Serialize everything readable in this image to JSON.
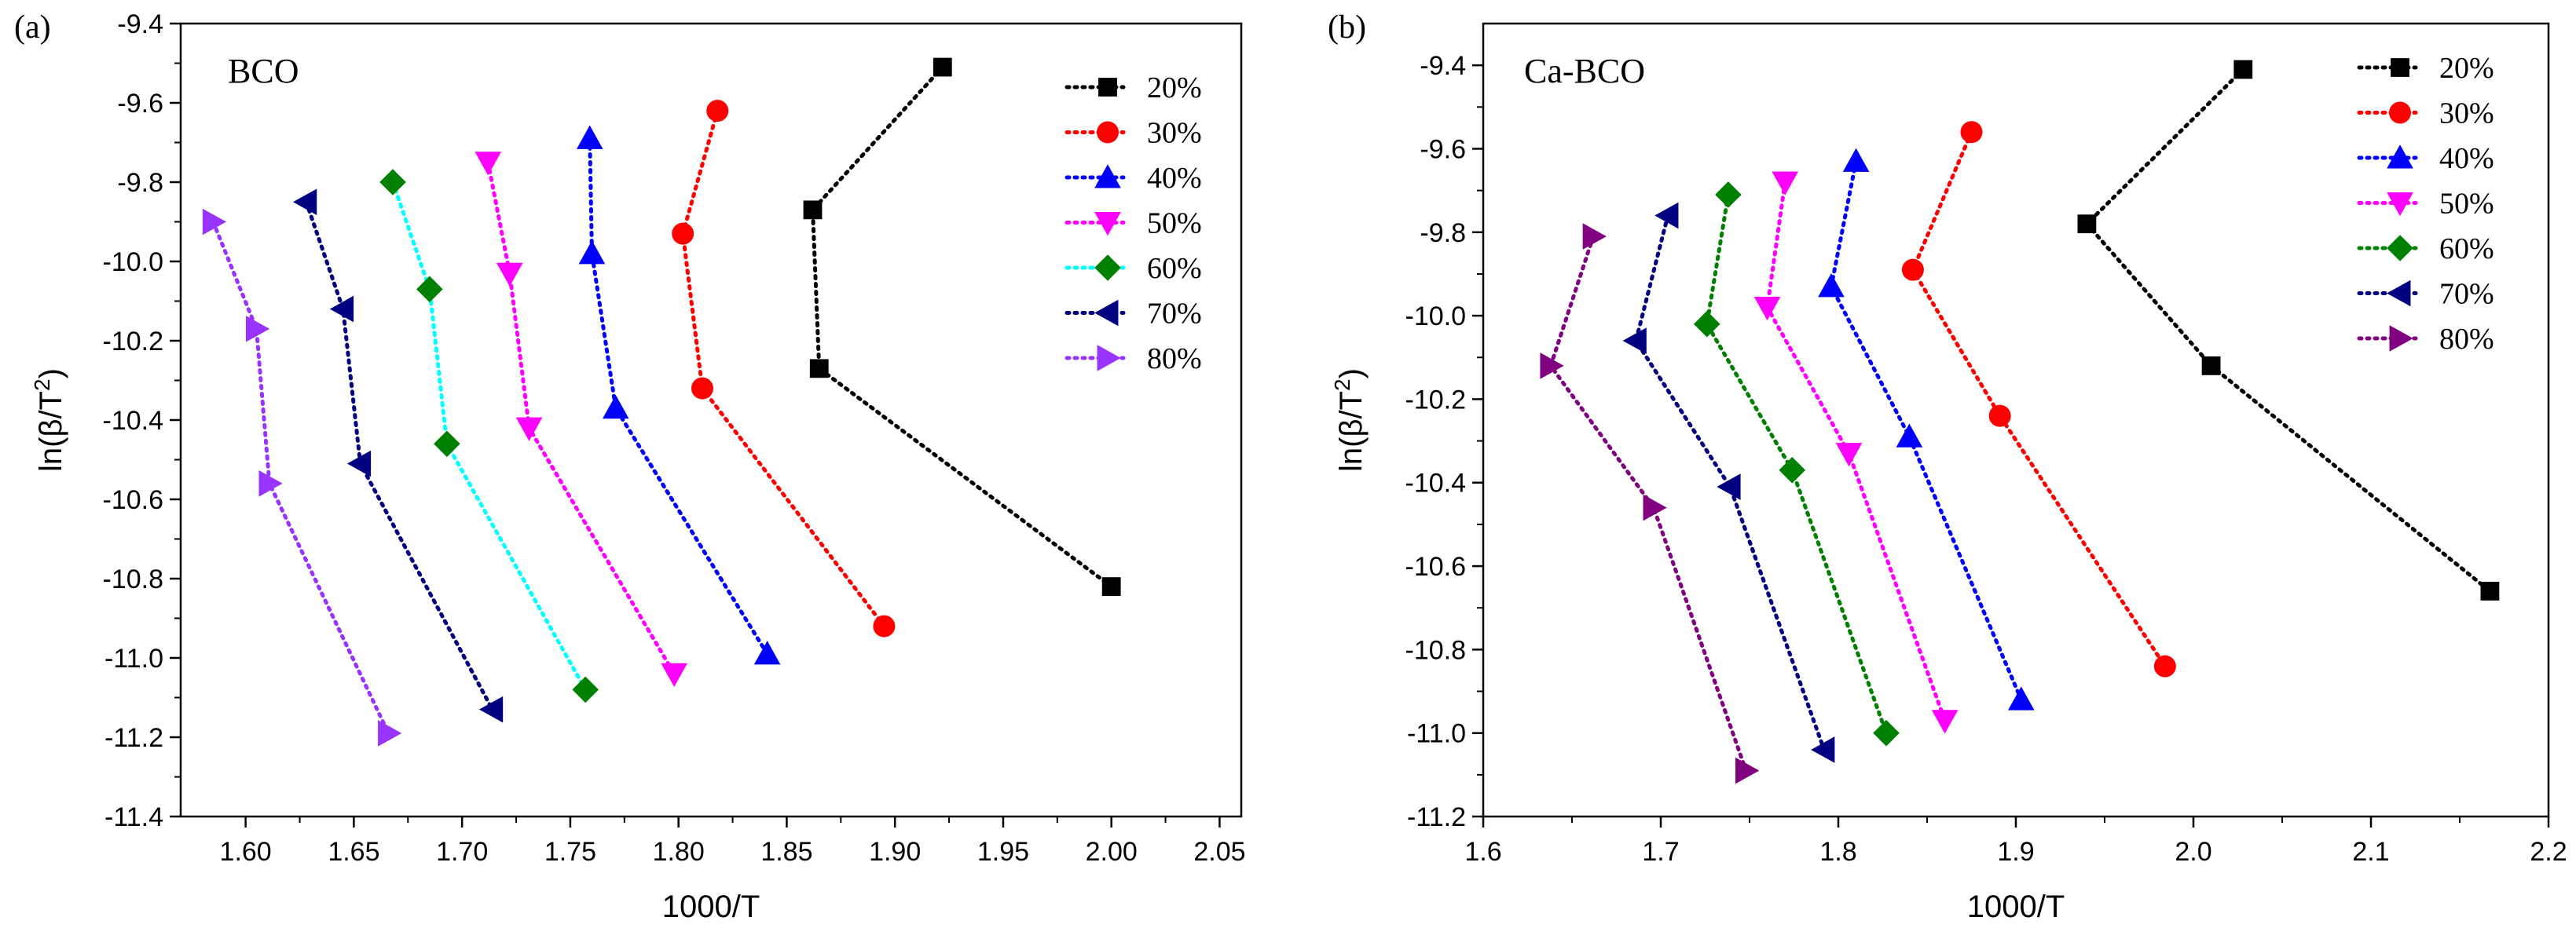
{
  "chart_data": [
    {
      "type": "scatter",
      "panel_label": "(a)",
      "title": "BCO",
      "xlabel": "1000/T",
      "ylabel": "ln(β/T²)",
      "ylabel_main": "ln(β/T",
      "ylabel_sup": "2",
      "ylabel_end": ")",
      "xlim": [
        1.57,
        2.06
      ],
      "ylim": [
        -11.4,
        -9.4
      ],
      "xticks": [
        1.6,
        1.65,
        1.7,
        1.75,
        1.8,
        1.85,
        1.9,
        1.95,
        2.0,
        2.05
      ],
      "xtick_labels": [
        "1.60",
        "1.65",
        "1.70",
        "1.75",
        "1.80",
        "1.85",
        "1.90",
        "1.95",
        "2.00",
        "2.05"
      ],
      "yticks": [
        -9.4,
        -9.6,
        -9.8,
        -10.0,
        -10.2,
        -10.4,
        -10.6,
        -10.8,
        -11.0,
        -11.2,
        -11.4
      ],
      "ytick_labels": [
        "-9.4",
        "-9.6",
        "-9.8",
        "-10.0",
        "-10.2",
        "-10.4",
        "-10.6",
        "-10.8",
        "-11.0",
        "-11.2",
        "-11.4"
      ],
      "legend_position": "top-right",
      "series": [
        {
          "name": "20%",
          "color": "#000000",
          "marker": "square",
          "x": [
            1.922,
            1.862,
            1.865,
            2.0
          ],
          "y": [
            -9.51,
            -9.87,
            -10.27,
            -10.82
          ]
        },
        {
          "name": "30%",
          "color": "#ff0000",
          "marker": "circle",
          "x": [
            1.818,
            1.802,
            1.811,
            1.895
          ],
          "y": [
            -9.62,
            -9.93,
            -10.32,
            -10.92
          ]
        },
        {
          "name": "40%",
          "color": "#0000ff",
          "marker": "triangle-up",
          "x": [
            1.759,
            1.76,
            1.771,
            1.841
          ],
          "y": [
            -9.69,
            -9.98,
            -10.37,
            -10.99
          ]
        },
        {
          "name": "50%",
          "color": "#ff00ff",
          "marker": "triangle-down",
          "x": [
            1.712,
            1.722,
            1.731,
            1.798
          ],
          "y": [
            -9.75,
            -10.03,
            -10.42,
            -11.04
          ]
        },
        {
          "name": "60%",
          "color": "#008000",
          "marker": "diamond",
          "line_color": "#00ffff",
          "x": [
            1.668,
            1.685,
            1.693,
            1.757
          ],
          "y": [
            -9.8,
            -10.07,
            -10.46,
            -11.08
          ]
        },
        {
          "name": "70%",
          "color": "#000080",
          "marker": "triangle-left",
          "x": [
            1.628,
            1.645,
            1.653,
            1.714
          ],
          "y": [
            -9.85,
            -10.12,
            -10.51,
            -11.13
          ]
        },
        {
          "name": "80%",
          "color": "#9933ff",
          "marker": "triangle-right",
          "x": [
            1.585,
            1.605,
            1.611,
            1.666
          ],
          "y": [
            -9.9,
            -10.17,
            -10.56,
            -11.19
          ]
        }
      ]
    },
    {
      "type": "scatter",
      "panel_label": "(b)",
      "title": "Ca-BCO",
      "xlabel": "1000/T",
      "ylabel": "ln(β/T²)",
      "ylabel_main": "ln(β/T",
      "ylabel_sup": "2",
      "ylabel_end": ")",
      "xlim": [
        1.6,
        2.2
      ],
      "ylim": [
        -11.2,
        -9.3
      ],
      "xticks": [
        1.6,
        1.7,
        1.8,
        1.9,
        2.0,
        2.1,
        2.2
      ],
      "xtick_labels": [
        "1.6",
        "1.7",
        "1.8",
        "1.9",
        "2.0",
        "2.1",
        "2.2"
      ],
      "yticks": [
        -9.4,
        -9.6,
        -9.8,
        -10.0,
        -10.2,
        -10.4,
        -10.6,
        -10.8,
        -11.0,
        -11.2
      ],
      "ytick_labels": [
        "-9.4",
        "-9.6",
        "-9.8",
        "-10.0",
        "-10.2",
        "-10.4",
        "-10.6",
        "-10.8",
        "-11.0",
        "-11.2"
      ],
      "legend_position": "top-right",
      "series": [
        {
          "name": "20%",
          "color": "#000000",
          "marker": "square",
          "x": [
            2.028,
            1.94,
            2.01,
            2.167
          ],
          "y": [
            -9.41,
            -9.78,
            -10.12,
            -10.66
          ]
        },
        {
          "name": "30%",
          "color": "#ff0000",
          "marker": "circle",
          "x": [
            1.875,
            1.842,
            1.891,
            1.984
          ],
          "y": [
            -9.56,
            -9.89,
            -10.24,
            -10.84
          ]
        },
        {
          "name": "40%",
          "color": "#0000ff",
          "marker": "triangle-up",
          "x": [
            1.81,
            1.796,
            1.84,
            1.903
          ],
          "y": [
            -9.63,
            -9.93,
            -10.29,
            -10.92
          ]
        },
        {
          "name": "50%",
          "color": "#ff00ff",
          "marker": "triangle-down",
          "x": [
            1.77,
            1.76,
            1.806,
            1.86
          ],
          "y": [
            -9.68,
            -9.98,
            -10.33,
            -10.97
          ]
        },
        {
          "name": "60%",
          "color": "#008000",
          "marker": "diamond",
          "x": [
            1.738,
            1.726,
            1.774,
            1.827
          ],
          "y": [
            -9.71,
            -10.02,
            -10.37,
            -11.0
          ]
        },
        {
          "name": "70%",
          "color": "#000080",
          "marker": "triangle-left",
          "x": [
            1.704,
            1.686,
            1.739,
            1.792
          ],
          "y": [
            -9.76,
            -10.06,
            -10.41,
            -11.04
          ]
        },
        {
          "name": "80%",
          "color": "#800080",
          "marker": "triangle-right",
          "x": [
            1.662,
            1.638,
            1.696,
            1.748
          ],
          "y": [
            -9.81,
            -10.12,
            -10.46,
            -11.09
          ]
        }
      ]
    }
  ]
}
